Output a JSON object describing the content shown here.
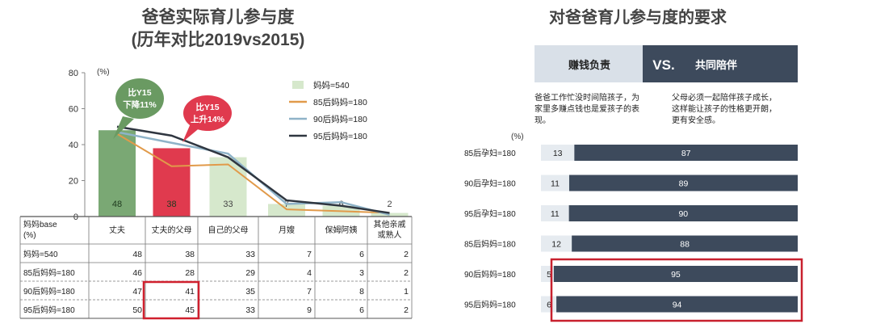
{
  "left_chart": {
    "title_line1": "爸爸实际育儿参与度",
    "title_line2": "(历年对比2019vs2015)",
    "unit": "(%)",
    "y_ticks": [
      "0",
      "20",
      "40",
      "60",
      "80"
    ],
    "legend": [
      "妈妈=540",
      "85后妈妈=180",
      "90后妈妈=180",
      "95后妈妈=180"
    ],
    "callout_green": "比Y15\n下降11%",
    "callout_red": "比Y15\n上升14%",
    "table_header_label": "妈妈base\n(%)",
    "categories": [
      "丈夫",
      "丈夫的父母",
      "自己的父母",
      "月嫂",
      "保姆阿姨",
      "其他亲戚\n或熟人"
    ],
    "rows": [
      {
        "label": "妈妈=540",
        "values": [
          "48",
          "38",
          "33",
          "7",
          "6",
          "2"
        ]
      },
      {
        "label": "85后妈妈=180",
        "values": [
          "46",
          "28",
          "29",
          "4",
          "3",
          "2"
        ]
      },
      {
        "label": "90后妈妈=180",
        "values": [
          "47",
          "41",
          "35",
          "7",
          "8",
          "1"
        ]
      },
      {
        "label": "95后妈妈=180",
        "values": [
          "50",
          "45",
          "33",
          "9",
          "6",
          "2"
        ]
      }
    ]
  },
  "right_chart": {
    "title": "对爸爸育儿参与度的要求",
    "header_left": "赚钱负责",
    "header_vs": "VS.",
    "header_right": "共同陪伴",
    "desc_left": "爸爸工作忙没时间陪孩子，为\n家里多赚点钱也是爱孩子的表\n现。",
    "desc_right": "父母必须一起陪伴孩子成长，\n这样能让孩子的性格更开朗，\n更有安全感。",
    "unit": "(%)",
    "rows": [
      {
        "label": "85后孕妇=180",
        "left": "13",
        "right": "87"
      },
      {
        "label": "90后孕妇=180",
        "left": "11",
        "right": "89"
      },
      {
        "label": "95后孕妇=180",
        "left": "11",
        "right": "90"
      },
      {
        "label": "85后妈妈=180",
        "left": "12",
        "right": "88"
      },
      {
        "label": "90后妈妈=180",
        "left": "5",
        "right": "95"
      },
      {
        "label": "95后妈妈=180",
        "left": "6",
        "right": "94"
      }
    ]
  },
  "chart_data": [
    {
      "type": "bar",
      "title": "爸爸实际育儿参与度",
      "subtitle": "(历年对比2019vs2015)",
      "ylabel": "(%)",
      "ylim": [
        0,
        80
      ],
      "categories": [
        "丈夫",
        "丈夫的父母",
        "自己的父母",
        "月嫂",
        "保姆阿姨",
        "其他亲戚或熟人"
      ],
      "series": [
        {
          "name": "妈妈=540",
          "kind": "bar",
          "values": [
            48,
            38,
            33,
            7,
            6,
            2
          ]
        },
        {
          "name": "85后妈妈=180",
          "kind": "line",
          "values": [
            46,
            28,
            29,
            4,
            3,
            2
          ]
        },
        {
          "name": "90后妈妈=180",
          "kind": "line",
          "values": [
            47,
            41,
            35,
            7,
            8,
            1
          ]
        },
        {
          "name": "95后妈妈=180",
          "kind": "line",
          "values": [
            50,
            45,
            33,
            9,
            6,
            2
          ]
        }
      ],
      "colors": {
        "bar_husband": "#7aa874",
        "bar_husband_parents": "#e03a4e",
        "bar_other": "#d6e8cc",
        "line85": "#e19a4a",
        "line90": "#8fb3c8",
        "line95": "#2f3640"
      }
    },
    {
      "type": "bar",
      "title": "对爸爸育儿参与度的要求",
      "ylabel": "(%)",
      "categories": [
        "85后孕妇=180",
        "90后孕妇=180",
        "95后孕妇=180",
        "85后妈妈=180",
        "90后妈妈=180",
        "95后妈妈=180"
      ],
      "series": [
        {
          "name": "赚钱负责",
          "values": [
            13,
            11,
            11,
            12,
            5,
            6
          ]
        },
        {
          "name": "共同陪伴",
          "values": [
            87,
            89,
            90,
            88,
            95,
            94
          ]
        }
      ],
      "stacked": true,
      "colors": {
        "left": "#d9e0e8",
        "right": "#3d4a5c",
        "highlight": "#c8202e"
      }
    }
  ]
}
